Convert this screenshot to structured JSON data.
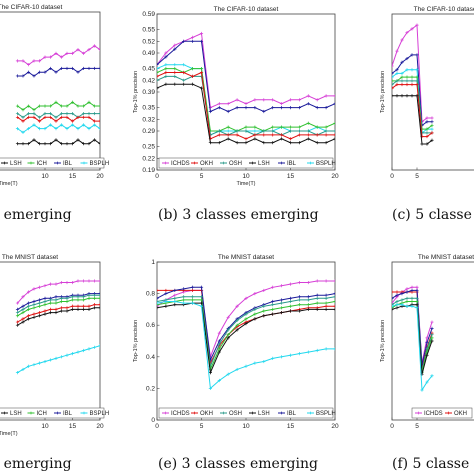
{
  "colors": {
    "ICHDS": "#d63fd6",
    "OKH": "#e01010",
    "OSH": "#2a9a8a",
    "LSH": "#111111",
    "ICH": "#30c030",
    "IBL": "#1a1a9a",
    "BSPLH": "#22d8ee"
  },
  "chart_data": [
    {
      "type": "line",
      "title": "The CIFAR-10 dataset",
      "ylabel": "",
      "xlabel": "Time(T)",
      "xlim": [
        0,
        20
      ],
      "ylim": [
        0.18,
        0.6
      ],
      "xticks": [
        10,
        15,
        20
      ],
      "yticks": [],
      "legend": [
        "LSH",
        "ICH",
        "IBL",
        "BSPLH"
      ],
      "x": [
        5,
        6,
        7,
        8,
        9,
        10,
        11,
        12,
        13,
        14,
        15,
        16,
        17,
        18,
        19,
        20
      ],
      "series": [
        {
          "name": "ICHDS",
          "values": [
            0.47,
            0.47,
            0.46,
            0.47,
            0.47,
            0.48,
            0.48,
            0.49,
            0.48,
            0.49,
            0.49,
            0.5,
            0.49,
            0.5,
            0.51,
            0.5
          ]
        },
        {
          "name": "IBL",
          "values": [
            0.43,
            0.43,
            0.44,
            0.43,
            0.44,
            0.44,
            0.45,
            0.44,
            0.45,
            0.45,
            0.45,
            0.44,
            0.45,
            0.45,
            0.45,
            0.45
          ]
        },
        {
          "name": "ICH",
          "values": [
            0.35,
            0.34,
            0.35,
            0.34,
            0.35,
            0.35,
            0.35,
            0.36,
            0.35,
            0.35,
            0.36,
            0.35,
            0.35,
            0.36,
            0.35,
            0.35
          ]
        },
        {
          "name": "OSH",
          "values": [
            0.33,
            0.32,
            0.33,
            0.33,
            0.32,
            0.33,
            0.33,
            0.32,
            0.33,
            0.33,
            0.33,
            0.32,
            0.33,
            0.33,
            0.33,
            0.33
          ]
        },
        {
          "name": "OKH",
          "values": [
            0.32,
            0.31,
            0.32,
            0.32,
            0.31,
            0.32,
            0.32,
            0.31,
            0.32,
            0.32,
            0.31,
            0.32,
            0.32,
            0.32,
            0.31,
            0.31
          ]
        },
        {
          "name": "BSPLH",
          "values": [
            0.29,
            0.28,
            0.29,
            0.3,
            0.29,
            0.29,
            0.3,
            0.29,
            0.3,
            0.29,
            0.3,
            0.29,
            0.3,
            0.29,
            0.3,
            0.29
          ]
        },
        {
          "name": "LSH",
          "values": [
            0.25,
            0.25,
            0.25,
            0.26,
            0.25,
            0.25,
            0.25,
            0.26,
            0.25,
            0.25,
            0.25,
            0.26,
            0.25,
            0.25,
            0.26,
            0.25
          ]
        }
      ]
    },
    {
      "type": "line",
      "title": "The CIFAR-10 dataset",
      "ylabel": "Top-1% precision",
      "xlabel": "Time(T)",
      "xlim": [
        0,
        20
      ],
      "ylim": [
        0.19,
        0.59
      ],
      "xticks": [
        0,
        5,
        10,
        15,
        20
      ],
      "yticks": [
        0.19,
        0.22,
        0.25,
        0.29,
        0.32,
        0.35,
        0.39,
        0.42,
        0.45,
        0.49,
        0.52,
        0.55,
        0.59
      ],
      "legend": [
        "ICHDS",
        "OKH",
        "OSH",
        "LSH",
        "IBL",
        "BSPLH"
      ],
      "x": [
        0,
        1,
        2,
        3,
        4,
        5,
        6,
        7,
        8,
        9,
        10,
        11,
        12,
        13,
        14,
        15,
        16,
        17,
        18,
        19,
        20
      ],
      "series": [
        {
          "name": "ICHDS",
          "values": [
            0.46,
            0.49,
            0.51,
            0.52,
            0.53,
            0.54,
            0.35,
            0.36,
            0.36,
            0.37,
            0.36,
            0.37,
            0.37,
            0.37,
            0.36,
            0.37,
            0.37,
            0.38,
            0.37,
            0.38,
            0.38
          ]
        },
        {
          "name": "IBL",
          "values": [
            0.46,
            0.48,
            0.5,
            0.52,
            0.52,
            0.52,
            0.34,
            0.35,
            0.34,
            0.35,
            0.35,
            0.35,
            0.34,
            0.35,
            0.35,
            0.35,
            0.35,
            0.36,
            0.35,
            0.35,
            0.36
          ]
        },
        {
          "name": "BSPLH",
          "values": [
            0.45,
            0.46,
            0.46,
            0.46,
            0.45,
            0.45,
            0.28,
            0.29,
            0.29,
            0.29,
            0.29,
            0.29,
            0.29,
            0.29,
            0.3,
            0.29,
            0.29,
            0.29,
            0.3,
            0.29,
            0.29
          ]
        },
        {
          "name": "ICH",
          "values": [
            0.44,
            0.45,
            0.45,
            0.44,
            0.45,
            0.45,
            0.29,
            0.29,
            0.3,
            0.29,
            0.3,
            0.3,
            0.29,
            0.3,
            0.3,
            0.3,
            0.3,
            0.31,
            0.3,
            0.3,
            0.31
          ]
        },
        {
          "name": "OSH",
          "values": [
            0.42,
            0.43,
            0.43,
            0.42,
            0.43,
            0.43,
            0.28,
            0.29,
            0.28,
            0.29,
            0.29,
            0.28,
            0.29,
            0.29,
            0.28,
            0.29,
            0.29,
            0.29,
            0.28,
            0.29,
            0.29
          ]
        },
        {
          "name": "OKH",
          "values": [
            0.43,
            0.44,
            0.44,
            0.44,
            0.43,
            0.44,
            0.27,
            0.28,
            0.28,
            0.28,
            0.27,
            0.28,
            0.28,
            0.28,
            0.28,
            0.27,
            0.28,
            0.28,
            0.28,
            0.28,
            0.28
          ]
        },
        {
          "name": "LSH",
          "values": [
            0.4,
            0.41,
            0.41,
            0.41,
            0.41,
            0.4,
            0.26,
            0.26,
            0.27,
            0.26,
            0.26,
            0.27,
            0.26,
            0.26,
            0.27,
            0.26,
            0.26,
            0.27,
            0.26,
            0.26,
            0.27
          ]
        }
      ]
    },
    {
      "type": "line",
      "title": "The CIFAR-10 dataset",
      "ylabel": "Top-1% precision",
      "xlabel": "",
      "xlim": [
        0,
        20
      ],
      "ylim": [
        0.18,
        0.6
      ],
      "xticks": [
        0,
        5
      ],
      "yticks": [],
      "legend": [],
      "x": [
        0,
        1,
        2,
        3,
        4,
        5,
        6,
        7,
        8
      ],
      "series": [
        {
          "name": "ICHDS",
          "values": [
            0.46,
            0.5,
            0.53,
            0.55,
            0.56,
            0.57,
            0.31,
            0.32,
            0.32
          ]
        },
        {
          "name": "IBL",
          "values": [
            0.44,
            0.45,
            0.47,
            0.48,
            0.49,
            0.49,
            0.3,
            0.31,
            0.31
          ]
        },
        {
          "name": "BSPLH",
          "values": [
            0.43,
            0.44,
            0.44,
            0.45,
            0.45,
            0.45,
            0.28,
            0.29,
            0.29
          ]
        },
        {
          "name": "ICH",
          "values": [
            0.42,
            0.42,
            0.43,
            0.43,
            0.43,
            0.43,
            0.29,
            0.29,
            0.3
          ]
        },
        {
          "name": "OSH",
          "values": [
            0.41,
            0.42,
            0.42,
            0.42,
            0.42,
            0.42,
            0.28,
            0.28,
            0.28
          ]
        },
        {
          "name": "OKH",
          "values": [
            0.4,
            0.41,
            0.41,
            0.41,
            0.41,
            0.41,
            0.27,
            0.27,
            0.28
          ]
        },
        {
          "name": "LSH",
          "values": [
            0.38,
            0.38,
            0.38,
            0.38,
            0.38,
            0.38,
            0.25,
            0.25,
            0.26
          ]
        }
      ]
    },
    {
      "type": "line",
      "title": "The MNIST dataset",
      "ylabel": "",
      "xlabel": "Time(T)",
      "xlim": [
        0,
        20
      ],
      "ylim": [
        0,
        1
      ],
      "xticks": [
        10,
        15,
        20
      ],
      "yticks": [],
      "legend": [
        "LSH",
        "ICH",
        "IBL",
        "BSPLH"
      ],
      "x": [
        5,
        6,
        7,
        8,
        9,
        10,
        11,
        12,
        13,
        14,
        15,
        16,
        17,
        18,
        19,
        20
      ],
      "series": [
        {
          "name": "ICHDS",
          "values": [
            0.74,
            0.78,
            0.81,
            0.83,
            0.84,
            0.85,
            0.86,
            0.86,
            0.87,
            0.87,
            0.87,
            0.88,
            0.88,
            0.88,
            0.88,
            0.88
          ]
        },
        {
          "name": "IBL",
          "values": [
            0.7,
            0.72,
            0.74,
            0.75,
            0.76,
            0.77,
            0.77,
            0.78,
            0.78,
            0.78,
            0.79,
            0.79,
            0.79,
            0.8,
            0.8,
            0.8
          ]
        },
        {
          "name": "OSH",
          "values": [
            0.68,
            0.7,
            0.72,
            0.73,
            0.74,
            0.75,
            0.76,
            0.76,
            0.77,
            0.77,
            0.78,
            0.78,
            0.78,
            0.79,
            0.79,
            0.79
          ]
        },
        {
          "name": "ICH",
          "values": [
            0.66,
            0.68,
            0.7,
            0.71,
            0.72,
            0.73,
            0.74,
            0.74,
            0.75,
            0.75,
            0.76,
            0.76,
            0.76,
            0.77,
            0.77,
            0.77
          ]
        },
        {
          "name": "OKH",
          "values": [
            0.62,
            0.64,
            0.66,
            0.67,
            0.68,
            0.69,
            0.7,
            0.7,
            0.71,
            0.71,
            0.72,
            0.72,
            0.72,
            0.72,
            0.73,
            0.73
          ]
        },
        {
          "name": "LSH",
          "values": [
            0.6,
            0.62,
            0.64,
            0.65,
            0.66,
            0.67,
            0.68,
            0.68,
            0.69,
            0.69,
            0.7,
            0.7,
            0.7,
            0.7,
            0.71,
            0.71
          ]
        },
        {
          "name": "BSPLH",
          "values": [
            0.3,
            0.32,
            0.34,
            0.35,
            0.36,
            0.37,
            0.38,
            0.39,
            0.4,
            0.41,
            0.42,
            0.43,
            0.44,
            0.45,
            0.46,
            0.47
          ]
        }
      ]
    },
    {
      "type": "line",
      "title": "The MNIST dataset",
      "ylabel": "Top-1% precision",
      "xlabel": "",
      "xlim": [
        0,
        20
      ],
      "ylim": [
        0,
        1
      ],
      "xticks": [
        0,
        5,
        10,
        15,
        20
      ],
      "yticks": [
        0,
        0.2,
        0.4,
        0.6,
        0.8,
        1
      ],
      "legend": [
        "ICHDS",
        "OKH",
        "OSH",
        "LSH",
        "IBL",
        "BSPLH"
      ],
      "x": [
        0,
        1,
        2,
        3,
        4,
        5,
        6,
        7,
        8,
        9,
        10,
        11,
        12,
        13,
        14,
        15,
        16,
        17,
        18,
        19,
        20
      ],
      "series": [
        {
          "name": "ICHDS",
          "values": [
            0.72,
            0.76,
            0.79,
            0.81,
            0.82,
            0.82,
            0.4,
            0.55,
            0.65,
            0.72,
            0.77,
            0.8,
            0.82,
            0.84,
            0.85,
            0.86,
            0.87,
            0.87,
            0.88,
            0.88,
            0.88
          ]
        },
        {
          "name": "OKH",
          "values": [
            0.82,
            0.82,
            0.82,
            0.82,
            0.82,
            0.82,
            0.36,
            0.47,
            0.54,
            0.59,
            0.62,
            0.64,
            0.66,
            0.67,
            0.68,
            0.69,
            0.7,
            0.71,
            0.71,
            0.72,
            0.72
          ]
        },
        {
          "name": "IBL",
          "values": [
            0.77,
            0.8,
            0.82,
            0.83,
            0.84,
            0.84,
            0.38,
            0.5,
            0.58,
            0.64,
            0.68,
            0.71,
            0.73,
            0.75,
            0.76,
            0.77,
            0.78,
            0.78,
            0.79,
            0.79,
            0.8
          ]
        },
        {
          "name": "OSH",
          "values": [
            0.75,
            0.76,
            0.77,
            0.78,
            0.78,
            0.78,
            0.34,
            0.48,
            0.57,
            0.63,
            0.67,
            0.7,
            0.72,
            0.73,
            0.74,
            0.75,
            0.76,
            0.76,
            0.77,
            0.77,
            0.78
          ]
        },
        {
          "name": "ICH",
          "values": [
            0.73,
            0.74,
            0.75,
            0.76,
            0.76,
            0.76,
            0.32,
            0.45,
            0.54,
            0.6,
            0.64,
            0.67,
            0.69,
            0.7,
            0.71,
            0.72,
            0.73,
            0.73,
            0.74,
            0.74,
            0.75
          ]
        },
        {
          "name": "LSH",
          "values": [
            0.71,
            0.72,
            0.73,
            0.73,
            0.74,
            0.74,
            0.3,
            0.43,
            0.52,
            0.57,
            0.61,
            0.64,
            0.66,
            0.67,
            0.68,
            0.69,
            0.69,
            0.7,
            0.7,
            0.7,
            0.7
          ]
        },
        {
          "name": "BSPLH",
          "values": [
            0.74,
            0.75,
            0.75,
            0.74,
            0.74,
            0.72,
            0.2,
            0.25,
            0.29,
            0.32,
            0.34,
            0.36,
            0.37,
            0.39,
            0.4,
            0.41,
            0.42,
            0.43,
            0.44,
            0.45,
            0.45
          ]
        }
      ]
    },
    {
      "type": "line",
      "title": "The MNIST dataset",
      "ylabel": "Top-1% precision",
      "xlabel": "",
      "xlim": [
        0,
        20
      ],
      "ylim": [
        0,
        1
      ],
      "xticks": [
        0,
        5
      ],
      "yticks": [],
      "legend": [
        "ICHDS",
        "OKH"
      ],
      "x": [
        0,
        1,
        2,
        3,
        4,
        5,
        6,
        7,
        8
      ],
      "series": [
        {
          "name": "ICHDS",
          "values": [
            0.74,
            0.78,
            0.81,
            0.83,
            0.84,
            0.84,
            0.36,
            0.52,
            0.62
          ]
        },
        {
          "name": "OKH",
          "values": [
            0.81,
            0.81,
            0.81,
            0.81,
            0.81,
            0.81,
            0.33,
            0.46,
            0.55
          ]
        },
        {
          "name": "IBL",
          "values": [
            0.77,
            0.79,
            0.8,
            0.81,
            0.82,
            0.82,
            0.35,
            0.49,
            0.58
          ]
        },
        {
          "name": "OSH",
          "values": [
            0.73,
            0.75,
            0.76,
            0.77,
            0.77,
            0.77,
            0.31,
            0.45,
            0.54
          ]
        },
        {
          "name": "ICH",
          "values": [
            0.71,
            0.73,
            0.74,
            0.75,
            0.75,
            0.75,
            0.3,
            0.43,
            0.52
          ]
        },
        {
          "name": "LSH",
          "values": [
            0.7,
            0.71,
            0.72,
            0.72,
            0.73,
            0.73,
            0.29,
            0.41,
            0.5
          ]
        },
        {
          "name": "BSPLH",
          "values": [
            0.72,
            0.73,
            0.73,
            0.72,
            0.72,
            0.71,
            0.19,
            0.24,
            0.28
          ]
        }
      ]
    }
  ],
  "captions": {
    "c0": "s emerging",
    "c1": "(b) 3 classes emerging",
    "c2": "(c) 5 classe",
    "c3": "s emerging",
    "c4": "(e) 3 classes emerging",
    "c5": "(f) 5 classe"
  },
  "axis_labels": {
    "top_left_y_ticks": "",
    "top_left_x_title": "Time(T)",
    "top_mid_x_title": "Time(T)",
    "bot_left_x_title": "Time(T)"
  }
}
